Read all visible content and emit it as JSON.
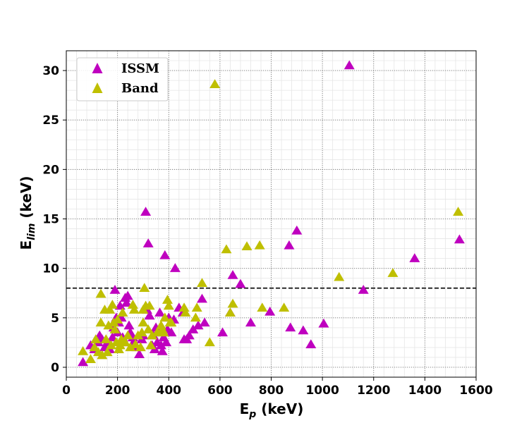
{
  "chart_data": {
    "type": "scatter",
    "title": "",
    "xlabel": "E",
    "xlabel_sub": "p",
    "xlabel_unit": " (keV)",
    "ylabel": "E",
    "ylabel_sub": "lim",
    "ylabel_unit": " (keV)",
    "xlim": [
      0,
      1600
    ],
    "ylim": [
      -1,
      32
    ],
    "xticks": [
      0,
      200,
      400,
      600,
      800,
      1000,
      1200,
      1400,
      1600
    ],
    "yticks": [
      0,
      5,
      10,
      15,
      20,
      25,
      30
    ],
    "grid": true,
    "legend_position": "top-left",
    "threshold_line": {
      "y": 8,
      "style": "dashed"
    },
    "series": [
      {
        "name": "ISSM",
        "color": "#bf00bf",
        "marker": "triangle-up",
        "points": [
          [
            65,
            0.5
          ],
          [
            95,
            2.2
          ],
          [
            110,
            1.8
          ],
          [
            125,
            2.5
          ],
          [
            130,
            3.2
          ],
          [
            140,
            2.8
          ],
          [
            150,
            2.0
          ],
          [
            160,
            2.5
          ],
          [
            170,
            1.8
          ],
          [
            180,
            3.0
          ],
          [
            185,
            4.0
          ],
          [
            190,
            7.8
          ],
          [
            195,
            5.0
          ],
          [
            200,
            3.5
          ],
          [
            205,
            4.5
          ],
          [
            210,
            6.2
          ],
          [
            215,
            5.0
          ],
          [
            220,
            3.0
          ],
          [
            225,
            2.5
          ],
          [
            230,
            7.0
          ],
          [
            235,
            6.5
          ],
          [
            240,
            7.2
          ],
          [
            245,
            4.2
          ],
          [
            250,
            3.5
          ],
          [
            255,
            2.2
          ],
          [
            260,
            3.0
          ],
          [
            265,
            2.5
          ],
          [
            275,
            2.0
          ],
          [
            285,
            1.3
          ],
          [
            295,
            2.8
          ],
          [
            300,
            3.2
          ],
          [
            310,
            15.7
          ],
          [
            315,
            5.8
          ],
          [
            320,
            12.5
          ],
          [
            325,
            5.2
          ],
          [
            335,
            2.2
          ],
          [
            340,
            3.2
          ],
          [
            345,
            1.8
          ],
          [
            350,
            4.0
          ],
          [
            355,
            2.5
          ],
          [
            360,
            3.5
          ],
          [
            365,
            5.5
          ],
          [
            370,
            2.2
          ],
          [
            375,
            1.6
          ],
          [
            380,
            3.0
          ],
          [
            385,
            11.3
          ],
          [
            390,
            2.5
          ],
          [
            395,
            3.8
          ],
          [
            400,
            5.0
          ],
          [
            410,
            3.5
          ],
          [
            420,
            4.8
          ],
          [
            425,
            10.0
          ],
          [
            440,
            6.0
          ],
          [
            455,
            5.5
          ],
          [
            460,
            2.8
          ],
          [
            470,
            2.8
          ],
          [
            480,
            3.2
          ],
          [
            495,
            3.8
          ],
          [
            515,
            4.2
          ],
          [
            530,
            6.9
          ],
          [
            540,
            4.5
          ],
          [
            610,
            3.5
          ],
          [
            640,
            5.5
          ],
          [
            650,
            9.3
          ],
          [
            680,
            8.4
          ],
          [
            720,
            4.5
          ],
          [
            795,
            5.6
          ],
          [
            870,
            12.3
          ],
          [
            875,
            4.0
          ],
          [
            900,
            13.8
          ],
          [
            925,
            3.7
          ],
          [
            955,
            2.3
          ],
          [
            1005,
            4.4
          ],
          [
            1105,
            30.5
          ],
          [
            1160,
            7.8
          ],
          [
            1360,
            11.0
          ],
          [
            1535,
            12.9
          ]
        ]
      },
      {
        "name": "Band",
        "color": "#bfbf00",
        "marker": "triangle-up",
        "points": [
          [
            65,
            1.6
          ],
          [
            95,
            0.8
          ],
          [
            110,
            2.0
          ],
          [
            115,
            2.8
          ],
          [
            125,
            1.5
          ],
          [
            135,
            7.4
          ],
          [
            135,
            4.5
          ],
          [
            140,
            1.2
          ],
          [
            150,
            5.8
          ],
          [
            155,
            2.8
          ],
          [
            160,
            1.5
          ],
          [
            165,
            4.2
          ],
          [
            170,
            5.8
          ],
          [
            175,
            2.2
          ],
          [
            180,
            6.3
          ],
          [
            185,
            4.5
          ],
          [
            190,
            3.8
          ],
          [
            195,
            2.5
          ],
          [
            200,
            4.8
          ],
          [
            205,
            1.8
          ],
          [
            210,
            2.2
          ],
          [
            215,
            2.8
          ],
          [
            220,
            5.5
          ],
          [
            230,
            2.5
          ],
          [
            240,
            3.2
          ],
          [
            250,
            2.0
          ],
          [
            260,
            6.3
          ],
          [
            265,
            5.8
          ],
          [
            270,
            2.3
          ],
          [
            280,
            3.2
          ],
          [
            290,
            2.0
          ],
          [
            295,
            3.5
          ],
          [
            300,
            4.5
          ],
          [
            300,
            5.8
          ],
          [
            305,
            8.0
          ],
          [
            310,
            6.2
          ],
          [
            320,
            3.8
          ],
          [
            325,
            6.2
          ],
          [
            330,
            2.2
          ],
          [
            335,
            3.2
          ],
          [
            355,
            3.5
          ],
          [
            370,
            4.2
          ],
          [
            375,
            3.8
          ],
          [
            380,
            3.5
          ],
          [
            385,
            5.0
          ],
          [
            395,
            6.8
          ],
          [
            400,
            6.2
          ],
          [
            405,
            4.5
          ],
          [
            410,
            4.5
          ],
          [
            460,
            6.0
          ],
          [
            465,
            5.5
          ],
          [
            505,
            5.0
          ],
          [
            510,
            6.0
          ],
          [
            530,
            8.5
          ],
          [
            560,
            2.5
          ],
          [
            580,
            28.6
          ],
          [
            625,
            11.9
          ],
          [
            640,
            5.5
          ],
          [
            650,
            6.4
          ],
          [
            705,
            12.2
          ],
          [
            755,
            12.3
          ],
          [
            765,
            6.0
          ],
          [
            850,
            6.0
          ],
          [
            1065,
            9.1
          ],
          [
            1275,
            9.5
          ],
          [
            1530,
            15.7
          ]
        ]
      }
    ]
  }
}
